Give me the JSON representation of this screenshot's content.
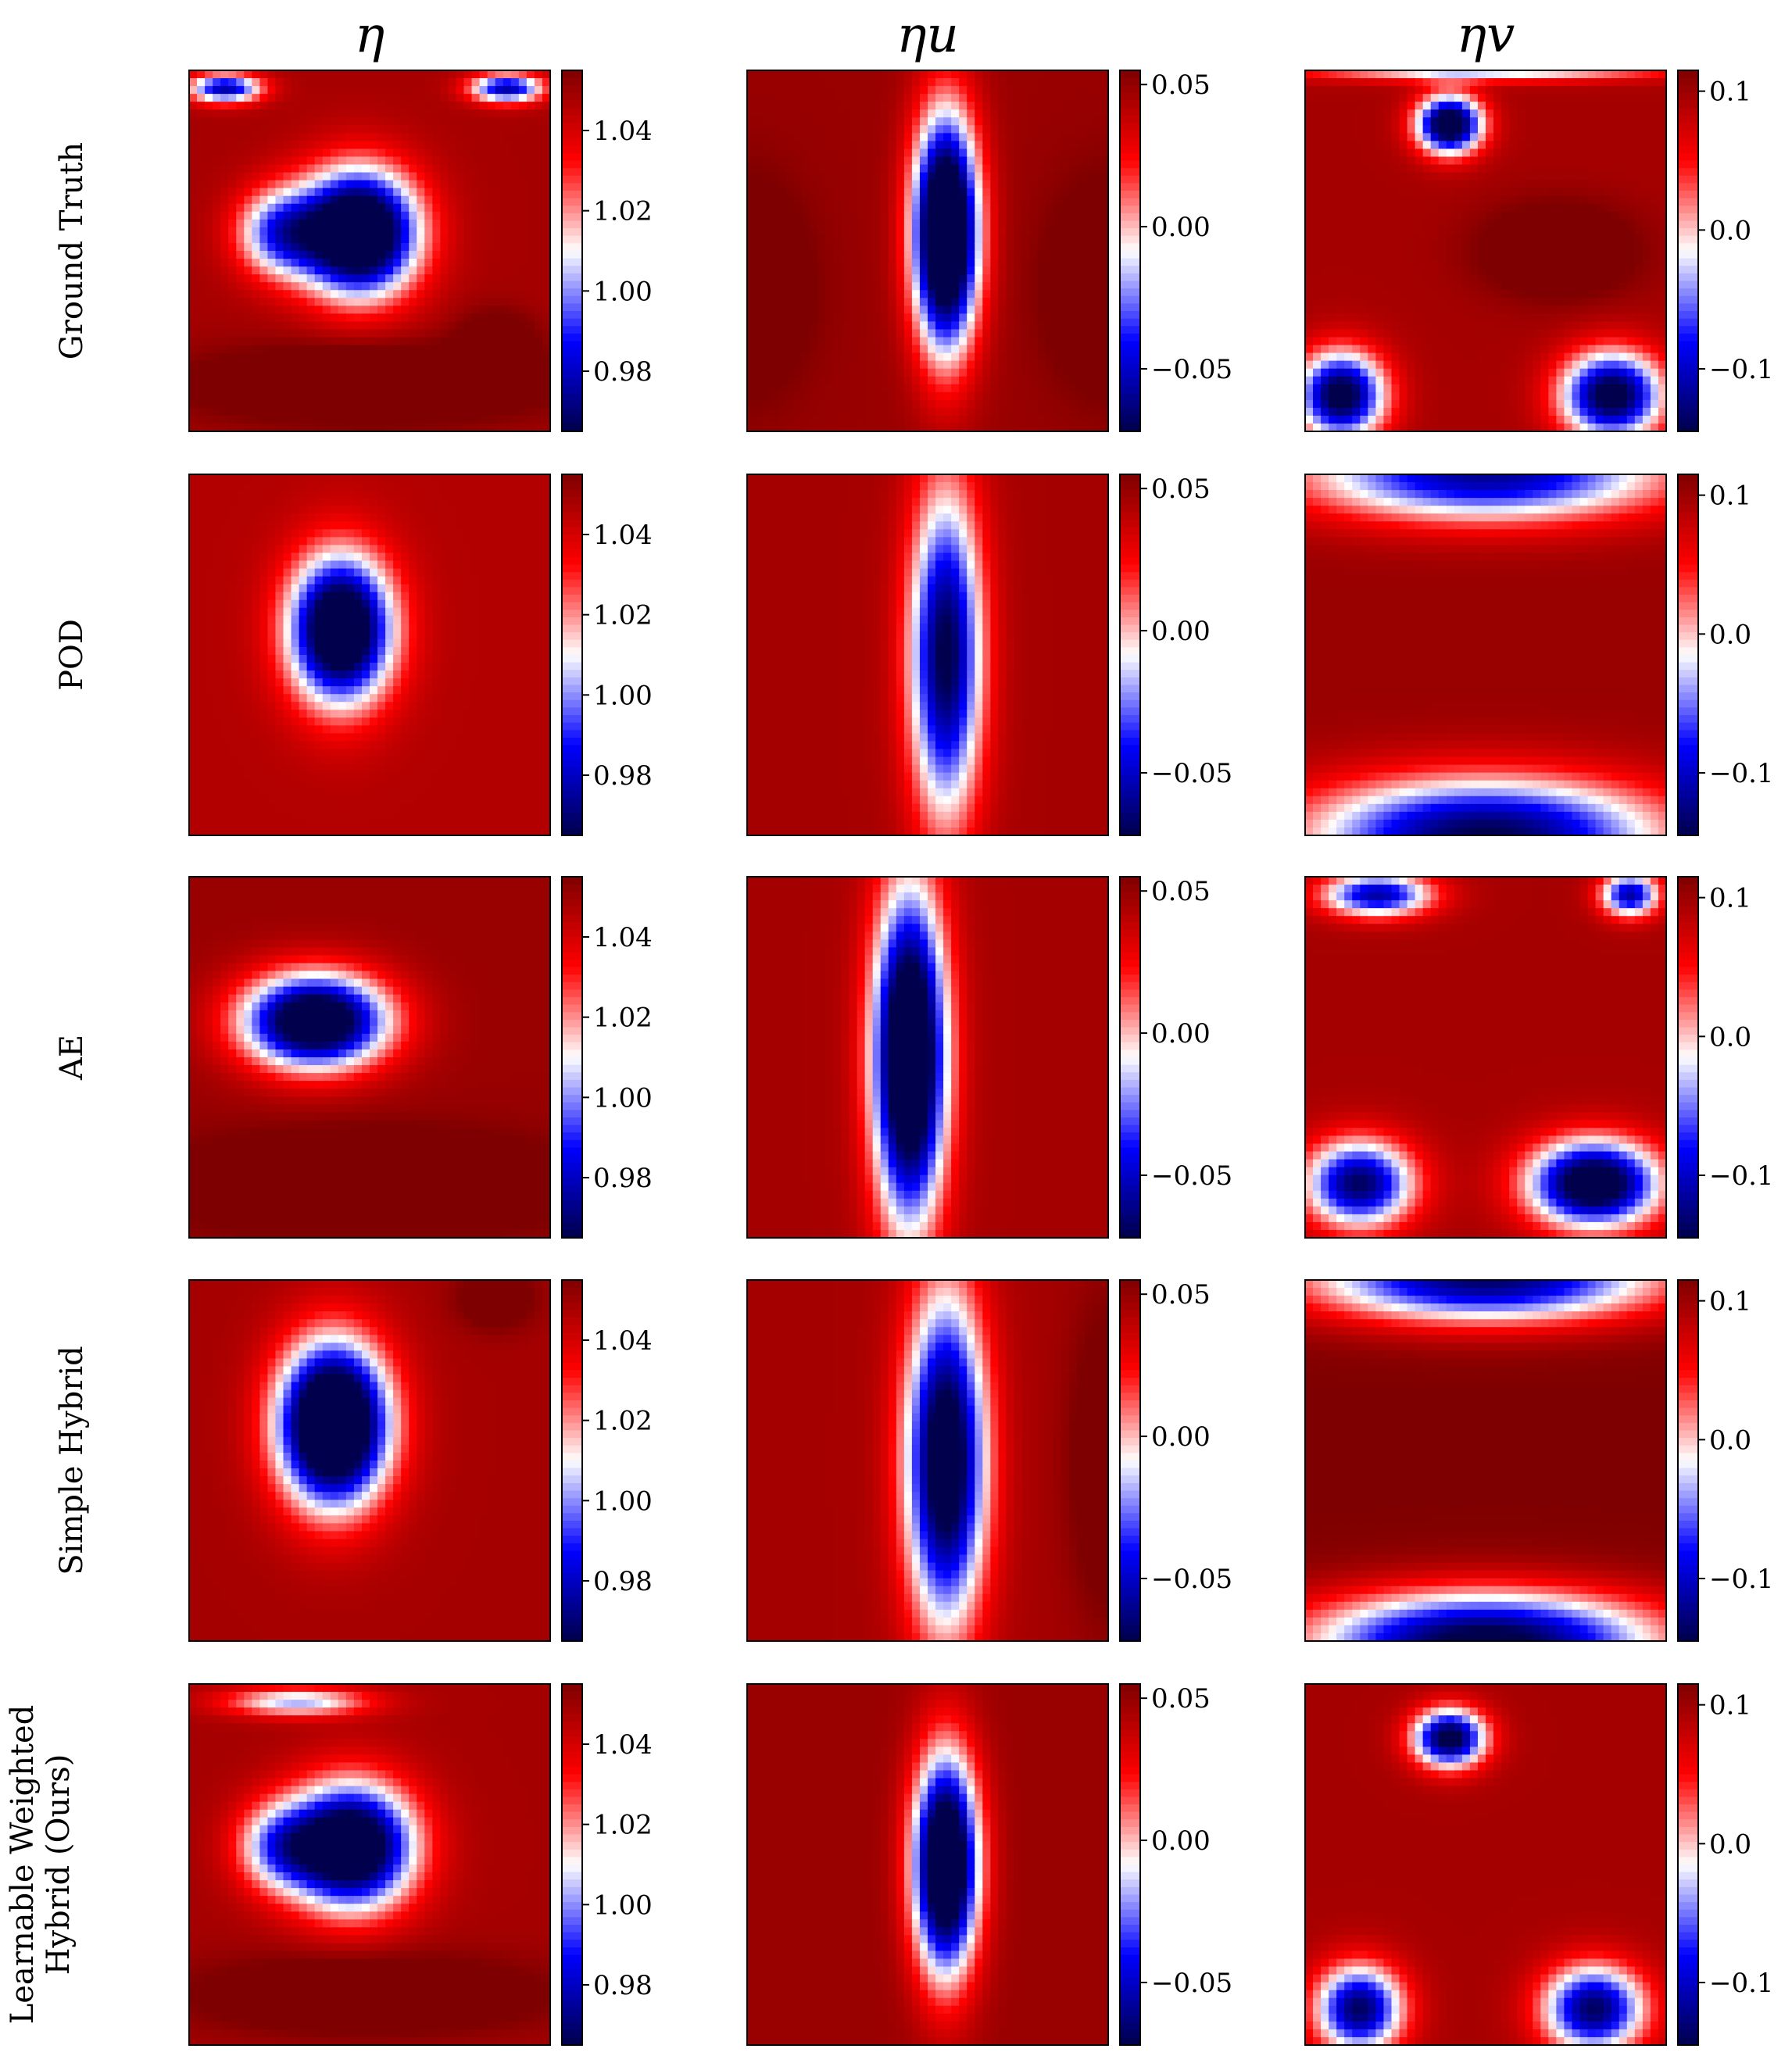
{
  "chart_data": {
    "type": "heatmap",
    "columns": [
      "η",
      "ηu",
      "ηv"
    ],
    "rows": [
      "Ground Truth",
      "POD",
      "AE",
      "Simple Hybrid",
      "Learnable Weighted Hybrid (Ours)"
    ],
    "row_label_lines": [
      [
        "Ground Truth"
      ],
      [
        "POD"
      ],
      [
        "AE"
      ],
      [
        "Simple Hybrid"
      ],
      [
        "Learnable Weighted",
        "Hybrid (Ours)"
      ]
    ],
    "colormap": "seismic",
    "colors": {
      "low": "#00004c",
      "mid_low": "#0000ff",
      "center": "#ffffff",
      "mid_high": "#ff0000",
      "high": "#7f0000"
    },
    "colorbars": [
      {
        "column": "η",
        "vmin": 0.965,
        "vmax": 1.055,
        "ticks": [
          0.98,
          1.0,
          1.02,
          1.04
        ],
        "tick_labels": [
          "0.98",
          "1.00",
          "1.02",
          "1.04"
        ]
      },
      {
        "column": "ηu",
        "vmin": -0.072,
        "vmax": 0.055,
        "ticks": [
          -0.05,
          0.0,
          0.05
        ],
        "tick_labels": [
          "−0.05",
          "0.00",
          "0.05"
        ]
      },
      {
        "column": "ηv",
        "vmin": -0.145,
        "vmax": 0.115,
        "ticks": [
          -0.1,
          0.0,
          0.1
        ],
        "tick_labels": [
          "−0.1",
          "0.0",
          "0.1"
        ]
      }
    ],
    "fields": [
      [
        {
          "base": 0.85,
          "blobs": [
            {
              "x": 0.47,
              "y": 0.45,
              "sx": 0.16,
              "sy": 0.17,
              "a": -2.6
            },
            {
              "x": 0.25,
              "y": 0.45,
              "sx": 0.12,
              "sy": 0.12,
              "a": -1.2
            },
            {
              "x": 0.5,
              "y": 0.87,
              "sx": 0.45,
              "sy": 0.1,
              "a": 0.6
            },
            {
              "x": 0.1,
              "y": 0.05,
              "sx": 0.1,
              "sy": 0.04,
              "a": -1.6
            },
            {
              "x": 0.88,
              "y": 0.05,
              "sx": 0.1,
              "sy": 0.04,
              "a": -1.6
            },
            {
              "x": 0.85,
              "y": 0.75,
              "sx": 0.1,
              "sy": 0.08,
              "a": 0.4
            }
          ]
        },
        {
          "base": 0.9,
          "blobs": [
            {
              "x": 0.55,
              "y": 0.45,
              "sx": 0.09,
              "sy": 0.32,
              "a": -2.8
            },
            {
              "x": 0.0,
              "y": 0.6,
              "sx": 0.15,
              "sy": 0.25,
              "a": 0.5
            },
            {
              "x": 1.0,
              "y": 0.6,
              "sx": 0.15,
              "sy": 0.25,
              "a": 0.5
            }
          ]
        },
        {
          "base": 0.85,
          "blobs": [
            {
              "x": 0.4,
              "y": 0.15,
              "sx": 0.09,
              "sy": 0.08,
              "a": -2.2
            },
            {
              "x": 0.1,
              "y": 0.9,
              "sx": 0.12,
              "sy": 0.12,
              "a": -2.0
            },
            {
              "x": 0.85,
              "y": 0.9,
              "sx": 0.14,
              "sy": 0.12,
              "a": -2.0
            },
            {
              "x": 0.5,
              "y": 0.0,
              "sx": 0.5,
              "sy": 0.03,
              "a": -1.0
            },
            {
              "x": 0.7,
              "y": 0.5,
              "sx": 0.2,
              "sy": 0.12,
              "a": 0.5
            }
          ]
        }
      ],
      [
        {
          "base": 0.8,
          "blobs": [
            {
              "x": 0.42,
              "y": 0.43,
              "sx": 0.14,
              "sy": 0.2,
              "a": -2.4
            }
          ]
        },
        {
          "base": 0.85,
          "blobs": [
            {
              "x": 0.55,
              "y": 0.5,
              "sx": 0.1,
              "sy": 0.45,
              "a": -1.9
            }
          ]
        },
        {
          "base": 0.9,
          "blobs": [
            {
              "x": 0.5,
              "y": 0.0,
              "sx": 0.5,
              "sy": 0.13,
              "a": -1.7
            },
            {
              "x": 0.5,
              "y": 1.0,
              "sx": 0.5,
              "sy": 0.16,
              "a": -1.9
            }
          ]
        }
      ],
      [
        {
          "base": 0.9,
          "blobs": [
            {
              "x": 0.35,
              "y": 0.4,
              "sx": 0.2,
              "sy": 0.13,
              "a": -2.4
            },
            {
              "x": 0.5,
              "y": 0.85,
              "sx": 0.45,
              "sy": 0.12,
              "a": 0.7
            }
          ]
        },
        {
          "base": 0.85,
          "blobs": [
            {
              "x": 0.45,
              "y": 0.5,
              "sx": 0.1,
              "sy": 0.45,
              "a": -2.6
            }
          ]
        },
        {
          "base": 0.85,
          "blobs": [
            {
              "x": 0.15,
              "y": 0.85,
              "sx": 0.15,
              "sy": 0.12,
              "a": -1.8
            },
            {
              "x": 0.8,
              "y": 0.85,
              "sx": 0.18,
              "sy": 0.12,
              "a": -2.2
            },
            {
              "x": 0.2,
              "y": 0.05,
              "sx": 0.15,
              "sy": 0.06,
              "a": -1.6
            },
            {
              "x": 0.9,
              "y": 0.05,
              "sx": 0.08,
              "sy": 0.06,
              "a": -1.6
            }
          ]
        }
      ],
      [
        {
          "base": 0.85,
          "blobs": [
            {
              "x": 0.4,
              "y": 0.4,
              "sx": 0.15,
              "sy": 0.22,
              "a": -2.8
            },
            {
              "x": 0.85,
              "y": 0.05,
              "sx": 0.1,
              "sy": 0.08,
              "a": 0.4
            }
          ]
        },
        {
          "base": 0.85,
          "blobs": [
            {
              "x": 0.55,
              "y": 0.5,
              "sx": 0.11,
              "sy": 0.45,
              "a": -2.2
            },
            {
              "x": 1.0,
              "y": 0.5,
              "sx": 0.1,
              "sy": 0.4,
              "a": 0.4
            }
          ]
        },
        {
          "base": 1.0,
          "blobs": [
            {
              "x": 0.5,
              "y": 0.0,
              "sx": 0.5,
              "sy": 0.12,
              "a": -1.9
            },
            {
              "x": 0.5,
              "y": 1.0,
              "sx": 0.5,
              "sy": 0.14,
              "a": -2.1
            }
          ]
        }
      ],
      [
        {
          "base": 0.85,
          "blobs": [
            {
              "x": 0.45,
              "y": 0.45,
              "sx": 0.17,
              "sy": 0.17,
              "a": -2.4
            },
            {
              "x": 0.25,
              "y": 0.45,
              "sx": 0.12,
              "sy": 0.12,
              "a": -1.0
            },
            {
              "x": 0.5,
              "y": 0.86,
              "sx": 0.45,
              "sy": 0.1,
              "a": 0.5
            },
            {
              "x": 0.3,
              "y": 0.05,
              "sx": 0.2,
              "sy": 0.04,
              "a": -1.0
            }
          ]
        },
        {
          "base": 0.9,
          "blobs": [
            {
              "x": 0.55,
              "y": 0.5,
              "sx": 0.09,
              "sy": 0.3,
              "a": -2.6
            }
          ]
        },
        {
          "base": 0.85,
          "blobs": [
            {
              "x": 0.4,
              "y": 0.15,
              "sx": 0.1,
              "sy": 0.08,
              "a": -2.0
            },
            {
              "x": 0.15,
              "y": 0.9,
              "sx": 0.12,
              "sy": 0.12,
              "a": -1.8
            },
            {
              "x": 0.8,
              "y": 0.9,
              "sx": 0.14,
              "sy": 0.12,
              "a": -1.8
            }
          ]
        }
      ]
    ]
  }
}
